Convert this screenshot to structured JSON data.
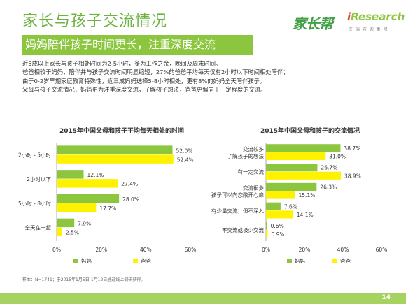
{
  "header": {
    "title": "家长与孩子交流情况",
    "subtitle": "妈妈陪伴孩子时间更长，注重深度交流",
    "logo_main": "家长帮",
    "logo_brand_i": "i",
    "logo_brand_rest": "Research",
    "logo_brand_sub": "艾 瑞 咨 询 集 团"
  },
  "intro": [
    "近5成以上家长与孩子相处时间为2-5小时，多为工作之余，晚间及周末时间。",
    "爸爸相较于妈妈，陪伴并与孩子交流时间明显缩短，27%的爸爸平均每天仅有2小时以下时间相处陪伴；",
    "由于0-2岁早期家庭教育特殊性，近三成妈妈选择5-8小时相处，更有8%的妈妈全天陪伴孩子。",
    "父母与孩子交流情况，妈妈更为注重深度交流，了解孩子想法，爸爸更偏向于一定程度的交流。"
  ],
  "colors": {
    "mom": "#8cc63f",
    "dad": "#fff200",
    "accent": "#6cb33f"
  },
  "chart_data": [
    {
      "type": "bar",
      "orientation": "horizontal",
      "title": "2015年中国父母和孩子平均每天相处的时间",
      "categories": [
        [
          "2小时 - 5小时"
        ],
        [
          "2小时以下"
        ],
        [
          "5小时 - 8小时"
        ],
        [
          "全天在一起"
        ]
      ],
      "series": [
        {
          "name": "妈妈",
          "values": [
            52.0,
            12.1,
            28.0,
            7.9
          ],
          "labels": [
            "52.0%",
            "12.1%",
            "28.0%",
            "7.9%"
          ]
        },
        {
          "name": "爸爸",
          "values": [
            52.4,
            27.4,
            17.7,
            2.5
          ],
          "labels": [
            "52.4%",
            "27.4%",
            "17.7%",
            "2.5%"
          ]
        }
      ],
      "xlim": [
        0,
        60
      ],
      "ticks": [
        "0%",
        "20%",
        "40%",
        "60%"
      ],
      "legend": "bottom"
    },
    {
      "type": "bar",
      "orientation": "horizontal",
      "title": "2015年中国父母和孩子的交流情况",
      "categories": [
        [
          "交流较多",
          "了解孩子的想法"
        ],
        [
          "有一定交流"
        ],
        [
          "交流很多",
          "孩子可以向您敞开心扉"
        ],
        [
          "有少量交流，但不深入"
        ],
        [
          "不交流或极少交流"
        ]
      ],
      "series": [
        {
          "name": "妈妈",
          "values": [
            38.7,
            26.7,
            26.3,
            7.6,
            0.6
          ],
          "labels": [
            "38.7%",
            "26.7%",
            "26.3%",
            "7.6%",
            "0.6%"
          ]
        },
        {
          "name": "爸爸",
          "values": [
            31.0,
            38.9,
            15.1,
            14.1,
            0.9
          ],
          "labels": [
            "31.0%",
            "38.9%",
            "15.1%",
            "14.1%",
            "0.9%"
          ]
        }
      ],
      "xlim": [
        0,
        60
      ],
      "ticks": [
        "0%",
        "20%",
        "40%",
        "60%"
      ],
      "legend": "bottom"
    }
  ],
  "footer": {
    "note": "样本：N=1741；于2015年1月5日-1月12日通过线上调研获得。",
    "page_number": "14"
  }
}
